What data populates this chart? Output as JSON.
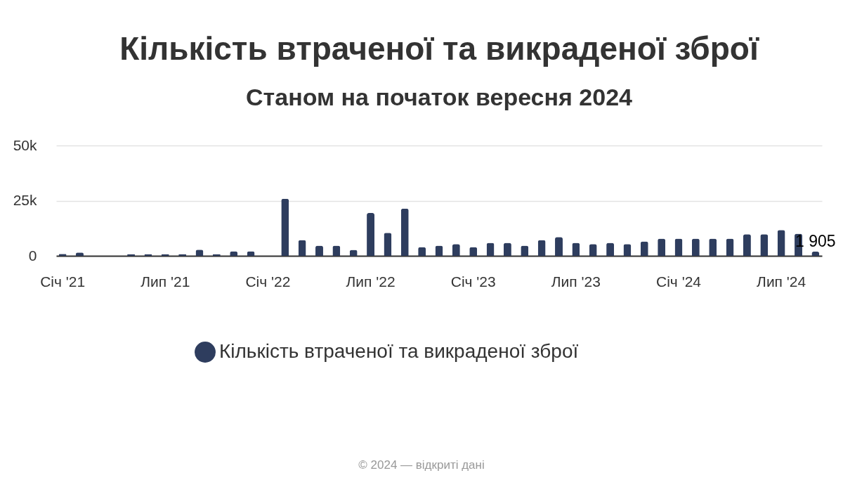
{
  "chart_data": {
    "type": "bar",
    "title": "Кількість втраченої та викраденої зброї",
    "subtitle": "Станом на початок вересня 2024",
    "categories": [
      "Січ '21",
      null,
      null,
      null,
      null,
      null,
      "Лип '21",
      null,
      null,
      null,
      null,
      null,
      "Січ '22",
      null,
      null,
      null,
      null,
      null,
      "Лип '22",
      null,
      null,
      null,
      null,
      null,
      "Січ '23",
      null,
      null,
      null,
      null,
      null,
      "Лип '23",
      null,
      null,
      null,
      null,
      null,
      "Січ '24",
      null,
      null,
      null,
      null,
      null,
      "Лип '24",
      null,
      null
    ],
    "series": [
      {
        "name": "Кількість втраченої та викраденої зброї",
        "color": "#2e3d5e",
        "values": [
          900,
          1500,
          null,
          null,
          800,
          800,
          800,
          800,
          2800,
          800,
          2100,
          2100,
          null,
          25900,
          7200,
          4600,
          4600,
          2700,
          19400,
          10400,
          21400,
          4000,
          4600,
          5300,
          4000,
          5900,
          5900,
          4600,
          7200,
          8500,
          5900,
          5300,
          5900,
          5300,
          6500,
          7800,
          7800,
          7800,
          7800,
          7800,
          9800,
          9800,
          11700,
          10000,
          1905
        ],
        "value_labels": [
          null,
          null,
          null,
          null,
          null,
          null,
          null,
          null,
          null,
          null,
          null,
          null,
          null,
          null,
          null,
          null,
          null,
          null,
          null,
          null,
          null,
          null,
          null,
          null,
          null,
          null,
          null,
          null,
          null,
          null,
          null,
          null,
          null,
          null,
          null,
          null,
          null,
          null,
          null,
          null,
          null,
          null,
          null,
          null,
          "1 905"
        ]
      }
    ],
    "ylim": [
      0,
      50000
    ],
    "yticks": [
      0,
      {
        "value": 25000,
        "label": "25k"
      },
      {
        "value": 50000,
        "label": "50k"
      }
    ],
    "grid": "y",
    "legend": "bottom",
    "annotations": [
      "© 2024 — відкриті дані"
    ]
  }
}
